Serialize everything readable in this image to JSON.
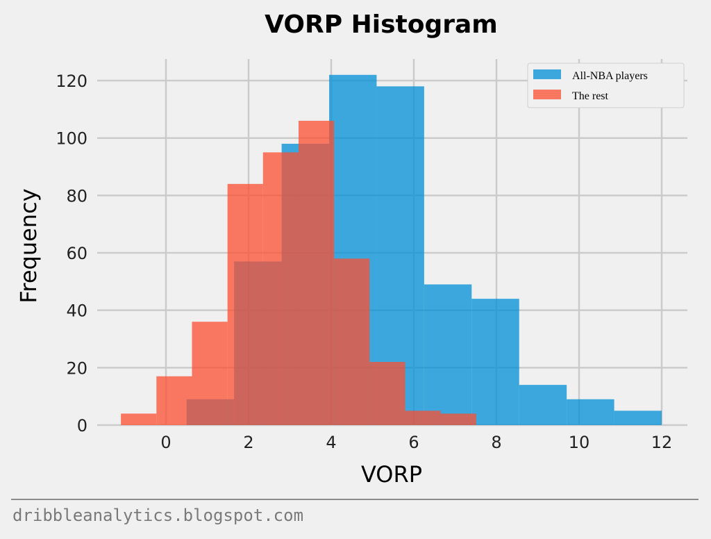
{
  "chart_data": {
    "type": "histogram",
    "title": "VORP Histogram",
    "xlabel": "VORP",
    "ylabel": "Frequency",
    "xlim": [
      -1.3,
      12.6
    ],
    "ylim": [
      0,
      128
    ],
    "xticks": [
      0,
      2,
      4,
      6,
      8,
      10,
      12
    ],
    "yticks": [
      0,
      20,
      40,
      60,
      80,
      100,
      120
    ],
    "grid": true,
    "legend_position": "top-right",
    "series": [
      {
        "name": "All-NBA players",
        "color": "#008fd5",
        "bin_edges": [
          0.5,
          1.65,
          2.8,
          3.95,
          5.1,
          6.25,
          7.4,
          8.55,
          9.7,
          10.85,
          12.0
        ],
        "counts": [
          9,
          57,
          98,
          122,
          118,
          49,
          44,
          14,
          9,
          5
        ]
      },
      {
        "name": "The rest",
        "color": "#fc4f30",
        "bin_edges": [
          -1.09,
          -0.23,
          0.63,
          1.49,
          2.35,
          3.21,
          4.07,
          4.93,
          5.79,
          6.65,
          7.51
        ],
        "counts": [
          4,
          17,
          36,
          84,
          95,
          106,
          58,
          22,
          5,
          4
        ]
      }
    ]
  },
  "footer": {
    "text": "dribbleanalytics.blogspot.com"
  }
}
